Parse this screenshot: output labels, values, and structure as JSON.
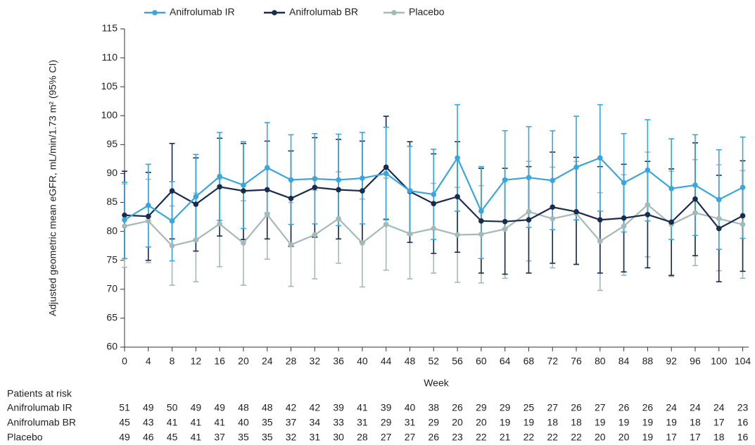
{
  "chart_data": {
    "type": "line",
    "y_label": "Adjusted geometric mean eGFR, mL/min/1.73 m² (95% CI)",
    "x_label": "Week",
    "x": [
      0,
      4,
      8,
      12,
      16,
      20,
      24,
      28,
      32,
      36,
      40,
      44,
      48,
      52,
      56,
      60,
      64,
      68,
      72,
      76,
      80,
      84,
      88,
      92,
      96,
      100,
      104
    ],
    "xlim": [
      0,
      105
    ],
    "xticks": [
      0,
      4,
      8,
      12,
      16,
      20,
      24,
      28,
      32,
      36,
      40,
      44,
      48,
      52,
      56,
      60,
      64,
      68,
      72,
      76,
      80,
      84,
      88,
      92,
      96,
      100,
      104
    ],
    "ylim": [
      60,
      115
    ],
    "yticks": [
      60,
      65,
      70,
      75,
      80,
      85,
      90,
      95,
      100,
      105,
      110,
      115
    ],
    "legend": "top",
    "series": [
      {
        "name": "Anifrolumab IR",
        "color": "#3aa6dc",
        "values": [
          82,
          84.5,
          81.8,
          86,
          89.5,
          88,
          91,
          88.9,
          89.1,
          88.9,
          89.2,
          90,
          87,
          86.4,
          92.7,
          83.5,
          88.9,
          89.3,
          88.8,
          91.1,
          92.7,
          88.4,
          90.6,
          87.4,
          88,
          85.5,
          87.6
        ],
        "ci_low": [
          75.3,
          77.3,
          74.9,
          78.6,
          81.9,
          80.5,
          83.2,
          81.2,
          81.3,
          81,
          81.3,
          82,
          79.4,
          78.6,
          83.5,
          75.3,
          80.5,
          80.7,
          80.3,
          82,
          83.5,
          79.9,
          81.8,
          78.6,
          79.3,
          76.9,
          78.8
        ],
        "ci_high": [
          88.5,
          91.6,
          88.6,
          93.3,
          97.1,
          95.5,
          98.8,
          96.7,
          96.9,
          96.8,
          97.1,
          98,
          94.7,
          94.2,
          101.9,
          91.2,
          97.4,
          98.1,
          97.4,
          99.9,
          101.9,
          96.9,
          99.3,
          96,
          96.7,
          94.1,
          96.3
        ]
      },
      {
        "name": "Anifrolumab BR",
        "color": "#1a2c4e",
        "values": [
          82.8,
          82.6,
          87,
          84.7,
          87.7,
          87,
          87.2,
          85.7,
          87.6,
          87.2,
          87,
          91.1,
          86.9,
          84.8,
          86,
          81.8,
          81.7,
          82,
          84.2,
          83.4,
          82,
          82.3,
          82.9,
          81.6,
          85.6,
          80.5,
          82.7
        ],
        "ci_low": [
          75.3,
          75,
          78.7,
          76.6,
          79.2,
          78.6,
          78.7,
          77.4,
          79,
          78.7,
          78.2,
          82.1,
          78.1,
          76.2,
          76.4,
          72.8,
          72.6,
          72.8,
          74.5,
          74.3,
          72.8,
          73,
          73.7,
          72.4,
          75.8,
          71.3,
          73.1
        ],
        "ci_high": [
          90.4,
          90.2,
          95.2,
          92.7,
          96.1,
          95.2,
          95.6,
          93.9,
          96.2,
          95.9,
          95.6,
          99.9,
          95.5,
          93.4,
          95.5,
          90.9,
          90.9,
          91.2,
          93.7,
          92.8,
          91.2,
          91.6,
          92.1,
          90.8,
          95.3,
          89.7,
          92.2
        ]
      },
      {
        "name": "Placebo",
        "color": "#a5b9b7",
        "values": [
          80.9,
          81.8,
          77.5,
          78.5,
          81.3,
          78,
          82.9,
          77.7,
          79.4,
          82.2,
          78,
          81.2,
          79.6,
          80.5,
          79.4,
          79.5,
          80.4,
          83.4,
          82.2,
          83.1,
          78.3,
          80.9,
          84.6,
          81.2,
          83.2,
          82.2,
          81.2
        ],
        "ci_low": [
          73.8,
          74.6,
          70.7,
          71.3,
          73.9,
          70.7,
          75.2,
          70.5,
          71.8,
          74.5,
          70.4,
          73.3,
          71.8,
          72.8,
          71.2,
          71.1,
          71.9,
          74.9,
          73.7,
          74.3,
          69.8,
          72.4,
          75.6,
          72.2,
          74.1,
          73.2,
          71.9
        ],
        "ci_high": [
          88.2,
          89,
          84.4,
          86.6,
          89,
          85.3,
          90.7,
          85,
          87.1,
          90.3,
          85.6,
          89.2,
          87.3,
          88.3,
          87.6,
          87.9,
          89,
          92.1,
          91.1,
          92.1,
          86.7,
          89.8,
          93.7,
          90.4,
          92.4,
          91.5,
          90.5
        ]
      }
    ],
    "risk_table": {
      "title": "Patients at risk",
      "rows": [
        {
          "name": "Anifrolumab IR",
          "values": [
            51,
            49,
            50,
            49,
            49,
            48,
            48,
            42,
            42,
            39,
            41,
            39,
            40,
            38,
            26,
            29,
            29,
            25,
            27,
            26,
            27,
            26,
            26,
            24,
            24,
            24,
            23
          ]
        },
        {
          "name": "Anifrolumab BR",
          "values": [
            45,
            43,
            41,
            41,
            41,
            40,
            35,
            37,
            34,
            33,
            31,
            29,
            31,
            29,
            20,
            20,
            19,
            19,
            18,
            18,
            19,
            19,
            19,
            19,
            18,
            17,
            16
          ]
        },
        {
          "name": "Placebo",
          "values": [
            49,
            46,
            45,
            41,
            37,
            35,
            35,
            32,
            31,
            30,
            28,
            27,
            27,
            26,
            23,
            22,
            21,
            22,
            22,
            22,
            20,
            20,
            19,
            17,
            17,
            18,
            16
          ]
        }
      ]
    }
  }
}
